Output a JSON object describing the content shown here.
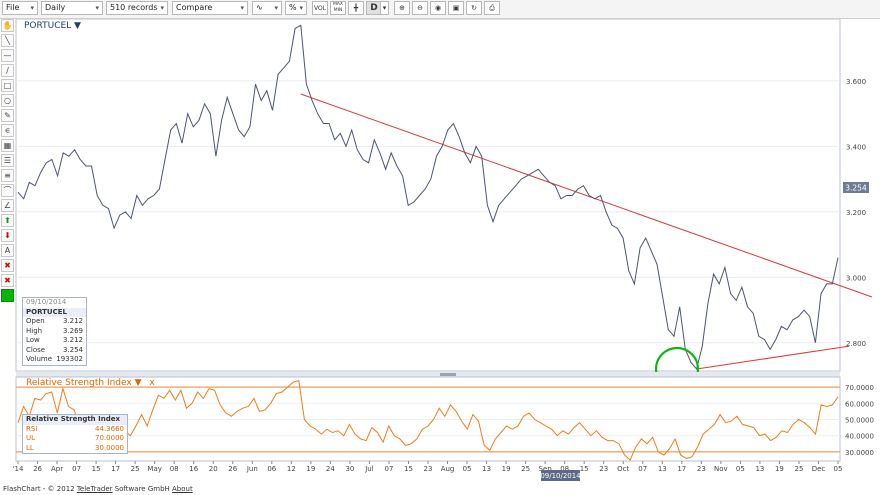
{
  "toolbar": {
    "file_label": "File",
    "period_label": "Daily",
    "records_label": "510 records",
    "compare_label": "Compare",
    "vol_label": "VOL",
    "maxmin_label": "MAX MIN",
    "d_label": "D"
  },
  "main_chart": {
    "instrument_title": "PORTUCEL ▼",
    "y_ticks": [
      "3.600",
      "3.400",
      "3.200",
      "3.000",
      "2.800"
    ],
    "last_price": "3.254"
  },
  "info_box": {
    "date": "09/10/2014",
    "name": "PORTUCEL",
    "rows": [
      {
        "label": "Open",
        "value": "3.212"
      },
      {
        "label": "High",
        "value": "3.269"
      },
      {
        "label": "Low",
        "value": "3.212"
      },
      {
        "label": "Close",
        "value": "3.254"
      },
      {
        "label": "Volume",
        "value": "193302"
      }
    ]
  },
  "rsi_panel": {
    "title": "Relative Strength Index ▼",
    "close_label": "x",
    "y_ticks": [
      "70.0000",
      "60.0000",
      "50.0000",
      "40.0000",
      "30.0000"
    ],
    "box_title": "Relative Strength Index",
    "rows": [
      {
        "label": "RSI",
        "value": "44.3660"
      },
      {
        "label": "UL",
        "value": "70.0000"
      },
      {
        "label": "LL",
        "value": "30.0000"
      }
    ]
  },
  "x_axis": {
    "labels": [
      "'14",
      "26",
      "Apr",
      "07",
      "15",
      "17",
      "25",
      "May",
      "08",
      "16",
      "20",
      "26",
      "Jun",
      "06",
      "12",
      "19",
      "24",
      "30",
      "Jul",
      "07",
      "15",
      "23",
      "Aug",
      "05",
      "13",
      "19",
      "25",
      "Sep",
      "08",
      "15",
      "23",
      "Oct",
      "07",
      "13",
      "17",
      "23",
      "Nov",
      "05",
      "13",
      "19",
      "25",
      "Dec",
      "05"
    ],
    "cursor_date": "09/10/2014"
  },
  "footer": {
    "prefix": "FlashChart - © 2012 ",
    "company": "TeleTrader",
    "middle": " Software GmbH ",
    "about": "About"
  },
  "chart_data": [
    {
      "type": "line",
      "title": "PORTUCEL",
      "ylim": [
        2.72,
        3.78
      ],
      "series": [
        {
          "name": "PORTUCEL",
          "values": [
            3.26,
            3.24,
            3.29,
            3.28,
            3.32,
            3.35,
            3.36,
            3.31,
            3.38,
            3.37,
            3.39,
            3.36,
            3.34,
            3.34,
            3.25,
            3.22,
            3.21,
            3.15,
            3.19,
            3.2,
            3.18,
            3.25,
            3.22,
            3.24,
            3.25,
            3.27,
            3.36,
            3.45,
            3.47,
            3.41,
            3.5,
            3.46,
            3.48,
            3.53,
            3.5,
            3.37,
            3.48,
            3.55,
            3.5,
            3.45,
            3.43,
            3.46,
            3.59,
            3.54,
            3.57,
            3.51,
            3.62,
            3.64,
            3.66,
            3.76,
            3.77,
            3.59,
            3.54,
            3.5,
            3.47,
            3.47,
            3.42,
            3.44,
            3.4,
            3.45,
            3.39,
            3.36,
            3.35,
            3.42,
            3.38,
            3.33,
            3.38,
            3.34,
            3.31,
            3.22,
            3.23,
            3.25,
            3.27,
            3.3,
            3.37,
            3.4,
            3.45,
            3.47,
            3.43,
            3.38,
            3.35,
            3.4,
            3.37,
            3.22,
            3.17,
            3.22,
            3.24,
            3.26,
            3.28,
            3.3,
            3.31,
            3.32,
            3.33,
            3.31,
            3.29,
            3.28,
            3.24,
            3.25,
            3.25,
            3.27,
            3.28,
            3.25,
            3.24,
            3.25,
            3.2,
            3.16,
            3.15,
            3.12,
            3.02,
            2.98,
            3.09,
            3.12,
            3.08,
            3.04,
            2.94,
            2.84,
            2.82,
            2.91,
            2.78,
            2.74,
            2.72,
            2.79,
            2.92,
            3.01,
            2.98,
            3.03,
            2.95,
            2.93,
            2.97,
            2.91,
            2.89,
            2.82,
            2.81,
            2.78,
            2.81,
            2.85,
            2.84,
            2.87,
            2.88,
            2.9,
            2.88,
            2.8,
            2.95,
            2.98,
            2.98,
            3.06
          ]
        }
      ],
      "trendlines": [
        {
          "from_index": 50,
          "from_value": 3.56,
          "to_index": 151,
          "to_value": 2.94
        },
        {
          "from_index": 120,
          "from_value": 2.72,
          "to_index": 147,
          "to_value": 2.79
        }
      ]
    },
    {
      "type": "line",
      "title": "Relative Strength Index",
      "ylim": [
        25,
        75
      ],
      "upper_limit": 70,
      "lower_limit": 30,
      "series": [
        {
          "name": "RSI",
          "values": [
            48,
            58,
            52,
            63,
            62,
            66,
            67,
            54,
            69,
            58,
            56,
            44,
            50,
            48,
            40,
            37,
            34,
            37,
            36,
            43,
            40,
            46,
            53,
            46,
            56,
            65,
            63,
            68,
            62,
            68,
            57,
            60,
            67,
            63,
            69,
            68,
            59,
            54,
            52,
            55,
            57,
            58,
            63,
            55,
            56,
            60,
            66,
            67,
            70,
            73,
            74,
            50,
            46,
            44,
            41,
            44,
            42,
            43,
            40,
            47,
            41,
            38,
            37,
            45,
            42,
            36,
            46,
            40,
            38,
            34,
            35,
            38,
            44,
            46,
            50,
            57,
            52,
            59,
            55,
            49,
            44,
            53,
            49,
            34,
            31,
            38,
            42,
            46,
            44,
            46,
            52,
            54,
            50,
            48,
            46,
            44,
            40,
            43,
            41,
            45,
            48,
            44,
            40,
            43,
            39,
            37,
            37,
            35,
            28,
            24,
            33,
            38,
            35,
            39,
            30,
            28,
            32,
            38,
            28,
            26,
            27,
            33,
            41,
            44,
            47,
            53,
            48,
            49,
            52,
            47,
            46,
            45,
            40,
            41,
            37,
            39,
            43,
            42,
            47,
            50,
            48,
            45,
            41,
            59,
            58,
            59,
            64
          ]
        }
      ]
    }
  ]
}
